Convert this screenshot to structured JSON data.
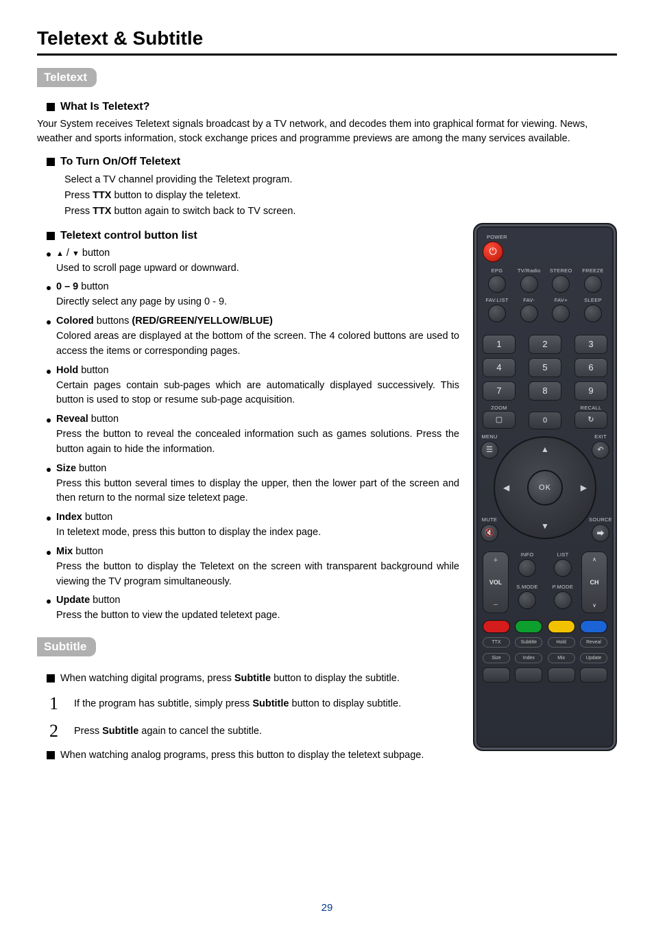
{
  "page": {
    "title": "Teletext & Subtitle",
    "page_number": "29",
    "page_number_color": "#003a8c"
  },
  "teletext": {
    "tab": "Teletext",
    "what_heading": "What Is Teletext?",
    "what_body": "Your System receives Teletext signals broadcast by a TV network, and decodes them into graphical format for viewing. News, weather and sports information, stock exchange prices and programme previews are among the many services available.",
    "turn_heading": "To Turn On/Off Teletext",
    "turn_lines": [
      "Select a TV channel providing the Teletext program.",
      "Press <b>TTX</b> button to display the teletext.",
      "Press <b>TTX</b> button again to switch back to TV screen."
    ],
    "list_heading": "Teletext control button list",
    "items": [
      {
        "label_html": "<span class='arrow'>▲</span> / <span class='arrow'>▼</span> button",
        "desc": "Used to scroll page upward or downward."
      },
      {
        "label_html": "<b>0 – 9</b> button",
        "desc": "Directly select any page by using 0 - 9."
      },
      {
        "label_html": "<b>Colored</b> buttons <b>(RED/GREEN/YELLOW/BLUE)</b>",
        "desc": "Colored areas are displayed at the bottom of the screen. The 4 colored buttons are used to access the items or corresponding pages."
      },
      {
        "label_html": "<b>Hold</b>  button",
        "desc": "Certain pages contain sub-pages which are automatically displayed successively. This button is used to stop or resume sub-page acquisition."
      },
      {
        "label_html": "<b>Reveal</b> button",
        "desc": "Press the button to reveal the concealed information such as games solutions. Press the button again to hide the information."
      },
      {
        "label_html": "<b>Size</b> button",
        "desc": "Press this button several times to display the upper, then the lower part of the screen and then return to the normal size teletext page."
      },
      {
        "label_html": "<b>Index</b> button",
        "desc": "In teletext mode, press this button to display the index page."
      },
      {
        "label_html": "<b>Mix</b> button",
        "desc": "Press the button to display the Teletext on the screen with transparent background while viewing the TV program simultaneously."
      },
      {
        "label_html": "<b>Update</b> button",
        "desc": "Press the button to view the updated teletext page."
      }
    ]
  },
  "subtitle": {
    "tab": "Subtitle",
    "intro_html": "When watching digital programs, press <b>Subtitle</b> button to display the subtitle.",
    "steps": [
      {
        "num": "1",
        "html": "If the program has subtitle, simply press <b>Subtitle</b> button to display subtitle."
      },
      {
        "num": "2",
        "html": "Press <b>Subtitle</b> again to cancel the subtitle."
      }
    ],
    "outro_html": "When watching analog programs, press this button to display the teletext subpage."
  },
  "remote": {
    "power_label": "POWER",
    "row1": [
      "EPG",
      "TV/Radio",
      "STEREO",
      "FREEZE"
    ],
    "row2": [
      "FAV.LIST",
      "FAV-",
      "FAV+",
      "SLEEP"
    ],
    "numpad": [
      [
        "1",
        "2",
        "3"
      ],
      [
        "4",
        "5",
        "6"
      ],
      [
        "7",
        "8",
        "9"
      ]
    ],
    "zoom": "ZOOM",
    "zero": "0",
    "recall_label": "RECALL",
    "menu": "MENU",
    "exit": "EXIT",
    "mute": "MUTE",
    "source": "SOURCE",
    "ok": "OK",
    "info": "INFO",
    "list": "LIST",
    "vol": "VOL",
    "ch": "CH",
    "smode": "S.MODE",
    "pmode": "P.MODE",
    "colored_colors": [
      "#d51c1c",
      "#0e9e2e",
      "#f2c200",
      "#1c63d5"
    ],
    "txtrow1": [
      "TTX",
      "Subtitle",
      "Hold",
      "Reveal"
    ],
    "txtrow2": [
      "Size",
      "Index",
      "Mix",
      "Update"
    ]
  }
}
